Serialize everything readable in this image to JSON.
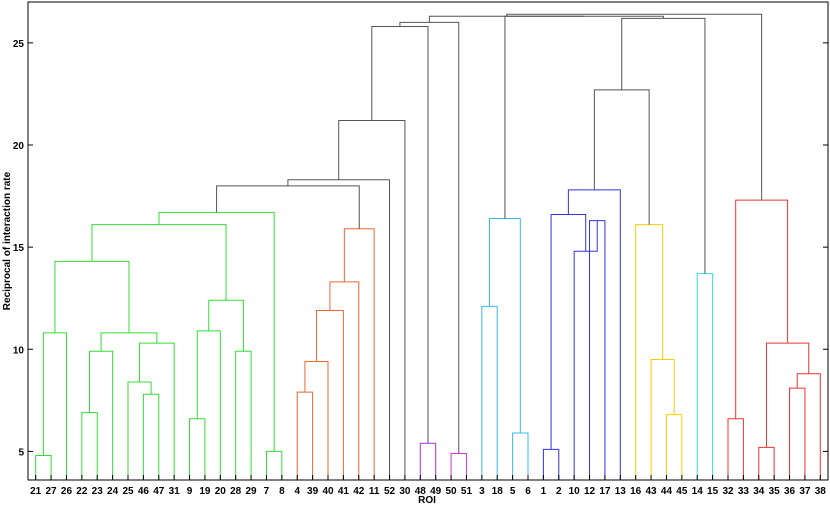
{
  "chart_data": {
    "type": "dendrogram",
    "xlabel": "ROI",
    "ylabel": "Reciprocal of interaction rate",
    "ylim": [
      3.6,
      27
    ],
    "yticks": [
      5,
      10,
      15,
      20,
      25
    ],
    "leaves": [
      "21",
      "27",
      "26",
      "22",
      "23",
      "24",
      "25",
      "46",
      "47",
      "31",
      "9",
      "19",
      "20",
      "28",
      "29",
      "7",
      "8",
      "4",
      "39",
      "40",
      "41",
      "42",
      "11",
      "52",
      "30",
      "48",
      "49",
      "50",
      "51",
      "3",
      "18",
      "5",
      "6",
      "1",
      "2",
      "10",
      "12",
      "17",
      "13",
      "16",
      "43",
      "44",
      "45",
      "14",
      "15",
      "32",
      "33",
      "34",
      "35",
      "36",
      "37",
      "38"
    ],
    "merges": [
      {
        "a": "21",
        "b": "27",
        "height": 4.8,
        "color": "#33dd33"
      },
      {
        "a": "22",
        "b": "23",
        "height": 6.9,
        "color": "#33dd33"
      },
      {
        "a": "46",
        "b": "47",
        "height": 7.8,
        "color": "#33dd33"
      },
      {
        "a": "9",
        "b": "19",
        "height": 6.6,
        "color": "#33dd33"
      },
      {
        "a": "28",
        "b": "29",
        "height": 9.9,
        "color": "#33dd33"
      },
      {
        "a": "7",
        "b": "8",
        "height": 5.0,
        "color": "#33dd33"
      },
      {
        "a": "4",
        "b": "39",
        "height": 7.9,
        "color": "#ee6633"
      },
      {
        "a": "48",
        "b": "49",
        "height": 5.4,
        "color": "#aa33dd"
      },
      {
        "a": "50",
        "b": "51",
        "height": 4.9,
        "color": "#dd33dd"
      },
      {
        "a": "3",
        "b": "18",
        "height": 12.1,
        "color": "#33bbee"
      },
      {
        "a": "5",
        "b": "6",
        "height": 5.9,
        "color": "#33bbee"
      },
      {
        "a": "1",
        "b": "2",
        "height": 5.1,
        "color": "#3333dd"
      },
      {
        "a": "12",
        "b": "17",
        "height": 16.3,
        "color": "#3333dd"
      },
      {
        "a": "44",
        "b": "45",
        "height": 6.8,
        "color": "#ffcc00"
      },
      {
        "a": "14",
        "b": "15",
        "height": 13.7,
        "color": "#33dddd"
      },
      {
        "a": "32",
        "b": "33",
        "height": 6.6,
        "color": "#ee3333"
      },
      {
        "a": "34",
        "b": "35",
        "height": 5.2,
        "color": "#ee3333"
      },
      {
        "a": "36",
        "b": "37",
        "height": 8.1,
        "color": "#ee3333"
      },
      {
        "a": "21-27",
        "b": "26",
        "height": 10.8,
        "color": "#33dd33"
      },
      {
        "a": "22-23",
        "b": "24",
        "height": 9.9,
        "color": "#33dd33"
      },
      {
        "a": "25",
        "b": "46-47",
        "height": 8.4,
        "color": "#33dd33"
      },
      {
        "a": "25-46-47",
        "b": "31",
        "height": 10.3,
        "color": "#33dd33"
      },
      {
        "a": "22-23-24",
        "b": "25-46-47-31",
        "height": 10.8,
        "color": "#33dd33"
      },
      {
        "a": "21-27-26",
        "b": "22..31",
        "height": 14.3,
        "color": "#33dd33"
      },
      {
        "a": "9-19",
        "b": "20",
        "height": 10.9,
        "color": "#33dd33"
      },
      {
        "a": "9-19-20",
        "b": "28-29",
        "height": 12.4,
        "color": "#33dd33"
      },
      {
        "a": "21..31",
        "b": "9..29",
        "height": 16.1,
        "color": "#33dd33"
      },
      {
        "a": "21..29",
        "b": "7-8",
        "height": 16.7,
        "color": "#33dd33"
      },
      {
        "a": "4-39",
        "b": "40",
        "height": 9.4,
        "color": "#ee6633"
      },
      {
        "a": "4-39-40",
        "b": "41",
        "height": 11.9,
        "color": "#ee6633"
      },
      {
        "a": "4..41",
        "b": "42",
        "height": 13.3,
        "color": "#ee6633"
      },
      {
        "a": "4..42",
        "b": "11",
        "height": 15.9,
        "color": "#ee6633"
      },
      {
        "a": "21..8",
        "b": "4..11",
        "height": 18.0,
        "color": "#555555"
      },
      {
        "a": "21..11",
        "b": "52",
        "height": 18.3,
        "color": "#555555"
      },
      {
        "a": "21..52",
        "b": "30",
        "height": 21.2,
        "color": "#555555"
      },
      {
        "a": "21..30",
        "b": "48-49",
        "height": 25.8,
        "color": "#555555"
      },
      {
        "a": "21..49",
        "b": "50-51",
        "height": 26.0,
        "color": "#555555"
      },
      {
        "a": "3-18",
        "b": "5-6",
        "height": 16.4,
        "color": "#33bbee"
      },
      {
        "a": "10",
        "b": "12-17",
        "height": 14.8,
        "color": "#3333dd"
      },
      {
        "a": "1-2",
        "b": "10-12-17",
        "height": 16.6,
        "color": "#3333dd"
      },
      {
        "a": "1..17",
        "b": "13",
        "height": 17.8,
        "color": "#3333dd"
      },
      {
        "a": "43",
        "b": "44-45",
        "height": 9.5,
        "color": "#ffcc00"
      },
      {
        "a": "16",
        "b": "43-44-45",
        "height": 16.1,
        "color": "#ffcc00"
      },
      {
        "a": "1..13",
        "b": "16..45",
        "height": 22.7,
        "color": "#555555"
      },
      {
        "a": "1..45",
        "b": "14-15",
        "height": 26.2,
        "color": "#555555"
      },
      {
        "a": "3..6",
        "b": "1..15",
        "height": 26.3,
        "color": "#555555"
      },
      {
        "a": "36-37",
        "b": "38",
        "height": 8.8,
        "color": "#ee3333"
      },
      {
        "a": "34-35",
        "b": "36-37-38",
        "height": 10.3,
        "color": "#ee3333"
      },
      {
        "a": "32-33",
        "b": "34..38",
        "height": 17.3,
        "color": "#ee3333"
      },
      {
        "a": "21..51",
        "b": "3..15",
        "height": 26.3,
        "color": "#555555"
      },
      {
        "a": "21..15",
        "b": "32..38",
        "height": 26.4,
        "color": "#555555"
      }
    ]
  }
}
